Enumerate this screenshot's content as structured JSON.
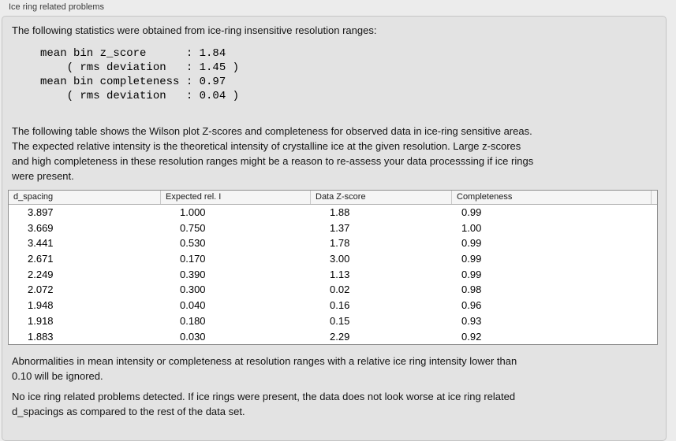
{
  "panel": {
    "title": "Ice ring related problems"
  },
  "stats": {
    "intro": "The following statistics were obtained from ice-ring insensitive resolution ranges:",
    "lines": [
      "mean bin z_score      : 1.84",
      "    ( rms deviation   : 1.45 )",
      "mean bin completeness : 0.97",
      "    ( rms deviation   : 0.04 )"
    ]
  },
  "table_intro": {
    "lines": [
      "The following table shows the Wilson plot Z-scores and completeness for observed data in ice-ring sensitive areas.",
      "The expected relative intensity is the theoretical intensity of crystalline ice at the given resolution. Large z-scores",
      "and high completeness in these resolution ranges might be a reason to re-assess your data processsing if ice rings",
      "were present."
    ]
  },
  "table": {
    "columns": [
      "d_spacing",
      "Expected rel. I",
      "Data Z-score",
      "Completeness"
    ],
    "rows": [
      [
        "3.897",
        "1.000",
        "1.88",
        "0.99"
      ],
      [
        "3.669",
        "0.750",
        "1.37",
        "1.00"
      ],
      [
        "3.441",
        "0.530",
        "1.78",
        "0.99"
      ],
      [
        "2.671",
        "0.170",
        "3.00",
        "0.99"
      ],
      [
        "2.249",
        "0.390",
        "1.13",
        "0.99"
      ],
      [
        "2.072",
        "0.300",
        "0.02",
        "0.98"
      ],
      [
        "1.948",
        "0.040",
        "0.16",
        "0.96"
      ],
      [
        "1.918",
        "0.180",
        "0.15",
        "0.93"
      ],
      [
        "1.883",
        "0.030",
        "2.29",
        "0.92"
      ]
    ]
  },
  "notes": {
    "ignore_rule": {
      "lines": [
        "Abnormalities in mean intensity or completeness at resolution ranges with a relative ice ring intensity lower than",
        "0.10 will be ignored."
      ]
    },
    "conclusion": {
      "lines": [
        "No ice ring related problems detected. If ice rings were present, the data does not look worse at ice ring related",
        "d_spacings as compared to the rest of the data set."
      ]
    }
  }
}
